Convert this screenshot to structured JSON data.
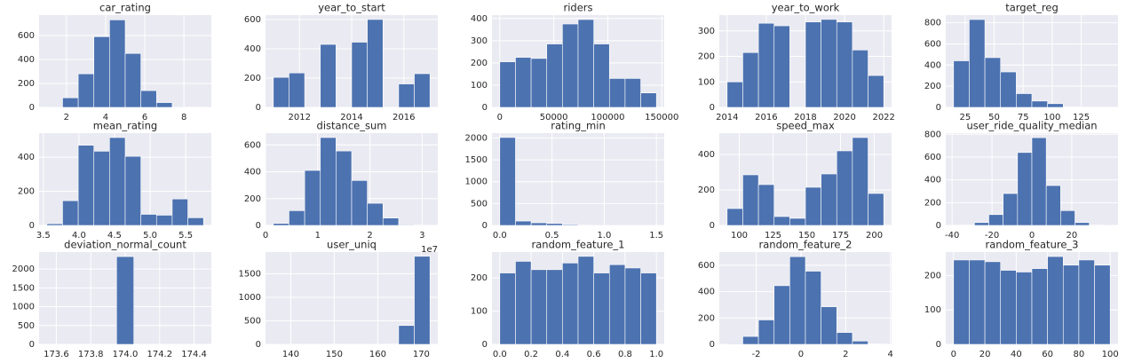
{
  "chart_data": [
    {
      "type": "histogram",
      "title": "car_rating",
      "bins": [
        1.0,
        1.8,
        2.6,
        3.4,
        4.2,
        5.0,
        5.8,
        6.6,
        7.4,
        8.2,
        9.0
      ],
      "counts": [
        5,
        80,
        280,
        590,
        730,
        450,
        140,
        40,
        5,
        2
      ],
      "xlim": [
        0.6,
        9.4
      ],
      "ylim": [
        0,
        770
      ],
      "xticks": [
        2,
        4,
        6,
        8
      ],
      "yticks": [
        0,
        200,
        400,
        600
      ],
      "color": "#4c72b0",
      "grid": true
    },
    {
      "type": "histogram",
      "title": "year_to_start",
      "bins": [
        2011.0,
        2011.6,
        2012.2,
        2012.8,
        2013.4,
        2014.0,
        2014.6,
        2015.2,
        2015.8,
        2016.4,
        2017.0
      ],
      "counts": [
        205,
        235,
        0,
        430,
        0,
        445,
        600,
        0,
        160,
        230
      ],
      "xlim": [
        2010.7,
        2017.3
      ],
      "ylim": [
        0,
        630
      ],
      "xticks": [
        2012,
        2014,
        2016
      ],
      "yticks": [
        0,
        200,
        400,
        600
      ],
      "color": "#4c72b0",
      "grid": true
    },
    {
      "type": "histogram",
      "title": "riders",
      "bins": [
        0,
        14500,
        29000,
        43500,
        58000,
        72500,
        87000,
        101500,
        116000,
        130500,
        145000
      ],
      "counts": [
        205,
        225,
        220,
        285,
        375,
        395,
        285,
        130,
        130,
        65
      ],
      "xlim": [
        -7250,
        152250
      ],
      "ylim": [
        0,
        415
      ],
      "xticks": [
        0,
        50000,
        100000,
        150000
      ],
      "yticks": [
        0,
        100,
        200,
        300,
        400
      ],
      "color": "#4c72b0",
      "grid": true
    },
    {
      "type": "histogram",
      "title": "year_to_work",
      "bins": [
        2014.0,
        2014.8,
        2015.6,
        2016.4,
        2017.2,
        2018.0,
        2018.8,
        2019.6,
        2020.4,
        2021.2,
        2022.0
      ],
      "counts": [
        100,
        215,
        330,
        320,
        0,
        335,
        345,
        335,
        225,
        125
      ],
      "xlim": [
        2013.6,
        2022.4
      ],
      "ylim": [
        0,
        362
      ],
      "xticks": [
        2014,
        2016,
        2018,
        2020,
        2022
      ],
      "yticks": [
        0,
        100,
        200,
        300
      ],
      "color": "#4c72b0",
      "grid": true
    },
    {
      "type": "histogram",
      "title": "target_reg",
      "bins": [
        15,
        28.5,
        42,
        55.5,
        69,
        82.5,
        96,
        109.5,
        123,
        136.5,
        150
      ],
      "counts": [
        440,
        830,
        470,
        335,
        130,
        60,
        35,
        5,
        3,
        2
      ],
      "xlim": [
        8.25,
        156.75
      ],
      "ylim": [
        0,
        872
      ],
      "xticks": [
        25,
        50,
        75,
        100,
        125
      ],
      "yticks": [
        0,
        200,
        400,
        600,
        800
      ],
      "color": "#4c72b0",
      "grid": true
    },
    {
      "type": "histogram",
      "title": "mean_rating",
      "bins": [
        3.55,
        3.77,
        3.99,
        4.21,
        4.43,
        4.65,
        4.87,
        5.09,
        5.31,
        5.53,
        5.75
      ],
      "counts": [
        10,
        145,
        470,
        435,
        515,
        405,
        65,
        60,
        155,
        45
      ],
      "xlim": [
        3.44,
        5.86
      ],
      "ylim": [
        0,
        541
      ],
      "xticks": [
        3.5,
        {
          "value": 4,
          "label": "4.0"
        },
        4.5,
        {
          "value": 5,
          "label": "5.0"
        },
        5.5
      ],
      "yticks": [
        0,
        200,
        400
      ],
      "color": "#4c72b0",
      "grid": true
    },
    {
      "type": "histogram",
      "title": "distance_sum",
      "bins": [
        0.15,
        0.45,
        0.75,
        1.05,
        1.35,
        1.65,
        1.95,
        2.25,
        2.55,
        2.85,
        3.15
      ],
      "counts": [
        15,
        110,
        410,
        655,
        555,
        335,
        165,
        55,
        5,
        2
      ],
      "xlim": [
        0.0,
        3.3
      ],
      "ylim": [
        0,
        688
      ],
      "xticks": [
        0,
        1,
        2,
        3
      ],
      "yticks": [
        0,
        200,
        400,
        600
      ],
      "color": "#4c72b0",
      "grid": true
    },
    {
      "type": "histogram",
      "title": "rating_min",
      "bins": [
        0,
        0.15,
        0.3,
        0.45,
        0.6,
        0.75,
        0.9,
        1.05,
        1.2,
        1.35,
        1.5
      ],
      "counts": [
        2010,
        100,
        60,
        45,
        20,
        5,
        3,
        2,
        1,
        1
      ],
      "xlim": [
        -0.075,
        1.575
      ],
      "ylim": [
        0,
        2110
      ],
      "xticks": [
        {
          "value": 0,
          "label": "0.0"
        },
        0.5,
        {
          "value": 1,
          "label": "1.0"
        },
        1.5
      ],
      "yticks": [
        0,
        500,
        1000,
        1500,
        2000
      ],
      "color": "#4c72b0",
      "grid": true
    },
    {
      "type": "histogram",
      "title": "speed_max",
      "bins": [
        91,
        102.6,
        114.2,
        125.8,
        137.4,
        149,
        160.6,
        172.2,
        183.8,
        195.4,
        207
      ],
      "counts": [
        95,
        285,
        230,
        50,
        40,
        215,
        290,
        420,
        495,
        180
      ],
      "xlim": [
        85.2,
        212.8
      ],
      "ylim": [
        0,
        520
      ],
      "xticks": [
        100,
        125,
        150,
        175,
        200
      ],
      "yticks": [
        0,
        200,
        400
      ],
      "color": "#4c72b0",
      "grid": true
    },
    {
      "type": "histogram",
      "title": "user_ride_quality_median",
      "bins": [
        -36,
        -28.8,
        -21.6,
        -14.4,
        -7.2,
        0,
        7.2,
        14.4,
        21.6,
        28.8,
        36
      ],
      "counts": [
        3,
        25,
        95,
        280,
        640,
        770,
        350,
        130,
        25,
        3
      ],
      "xlim": [
        -43.2,
        43.2
      ],
      "ylim": [
        0,
        810
      ],
      "xticks": [
        -40,
        -20,
        0,
        20
      ],
      "yticks": [
        0,
        200,
        400,
        600,
        800
      ],
      "color": "#4c72b0",
      "grid": true
    },
    {
      "type": "histogram",
      "title": "deviation_normal_count",
      "bins": [
        173.45,
        173.55,
        173.65,
        173.75,
        173.85,
        173.95,
        174.05,
        174.15,
        174.25,
        174.35,
        174.45
      ],
      "counts": [
        0,
        0,
        0,
        0,
        0,
        2330,
        0,
        0,
        0,
        0
      ],
      "xlim": [
        173.5,
        174.5
      ],
      "ylim": [
        0,
        2450
      ],
      "xticks": [
        173.6,
        173.8,
        {
          "value": 174,
          "label": "174.0"
        },
        174.2,
        174.4
      ],
      "yticks": [
        0,
        500,
        1000,
        1500,
        2000
      ],
      "color": "#4c72b0",
      "grid": true
    },
    {
      "type": "histogram",
      "title": "user_uniq",
      "x_offset_label": "1e7",
      "bins": [
        136,
        139.6,
        143.2,
        146.8,
        150.4,
        154,
        157.6,
        161.2,
        164.8,
        168.4,
        172
      ],
      "counts": [
        2,
        0,
        0,
        0,
        0,
        0,
        1,
        5,
        400,
        1870
      ],
      "xlim": [
        134.2,
        173.8
      ],
      "ylim": [
        0,
        1960
      ],
      "xticks": [
        140,
        150,
        160,
        170
      ],
      "yticks": [
        0,
        500,
        1000,
        1500
      ],
      "color": "#4c72b0",
      "grid": true
    },
    {
      "type": "histogram",
      "title": "random_feature_1",
      "bins": [
        0,
        0.1,
        0.2,
        0.3,
        0.4,
        0.5,
        0.6,
        0.7,
        0.8,
        0.9,
        1.0
      ],
      "counts": [
        215,
        250,
        225,
        225,
        245,
        265,
        215,
        240,
        230,
        215
      ],
      "xlim": [
        -0.05,
        1.05
      ],
      "ylim": [
        0,
        278
      ],
      "xticks": [
        {
          "value": 0,
          "label": "0.0"
        },
        0.2,
        0.4,
        0.6,
        0.8,
        {
          "value": 1,
          "label": "1.0"
        }
      ],
      "yticks": [
        0,
        100,
        200
      ],
      "color": "#4c72b0",
      "grid": true
    },
    {
      "type": "histogram",
      "title": "random_feature_2",
      "bins": [
        -3.3,
        -2.6,
        -1.9,
        -1.2,
        -0.5,
        0.2,
        0.9,
        1.6,
        2.3,
        3.0,
        3.7
      ],
      "counts": [
        5,
        60,
        185,
        445,
        665,
        555,
        285,
        90,
        25,
        3
      ],
      "xlim": [
        -3.65,
        4.05
      ],
      "ylim": [
        0,
        700
      ],
      "xticks": [
        -2,
        0,
        2,
        4
      ],
      "yticks": [
        0,
        200,
        400,
        600
      ],
      "color": "#4c72b0",
      "grid": true
    },
    {
      "type": "histogram",
      "title": "random_feature_3",
      "bins": [
        0,
        10,
        20,
        30,
        40,
        50,
        60,
        70,
        80,
        90,
        100
      ],
      "counts": [
        245,
        245,
        240,
        215,
        210,
        220,
        255,
        230,
        245,
        230
      ],
      "xlim": [
        -5,
        105
      ],
      "ylim": [
        0,
        268
      ],
      "xticks": [
        0,
        20,
        40,
        60,
        80,
        100
      ],
      "yticks": [
        0,
        100,
        200
      ],
      "color": "#4c72b0",
      "grid": true
    }
  ]
}
